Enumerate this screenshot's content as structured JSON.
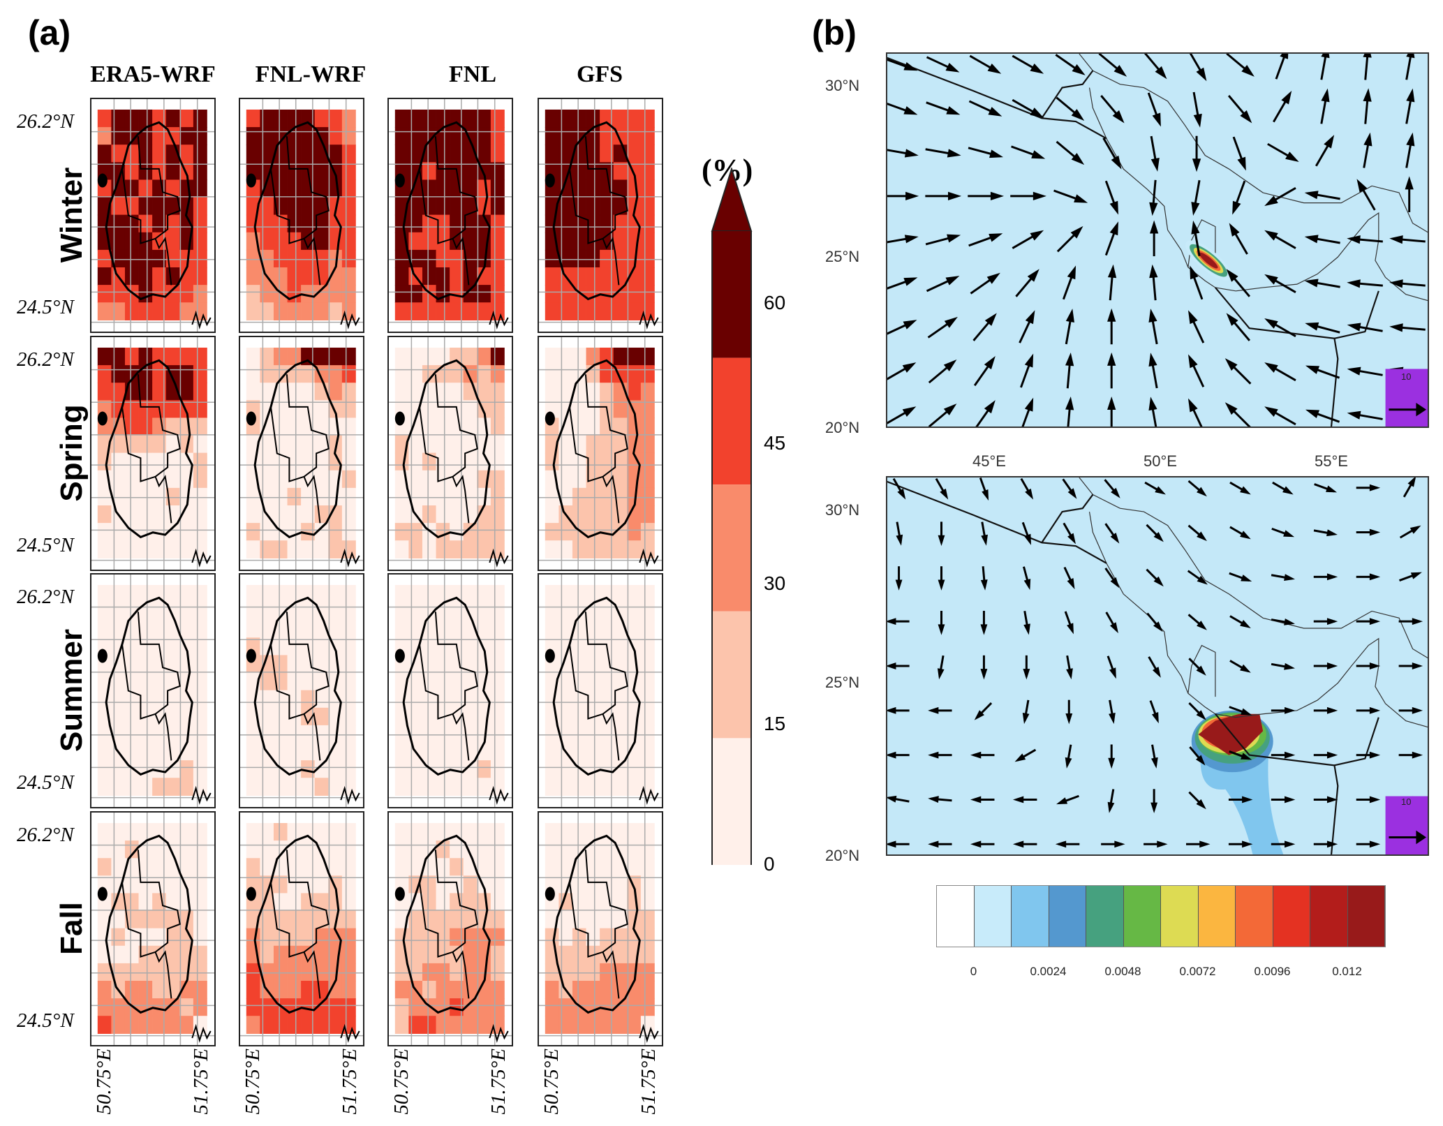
{
  "panel_a": {
    "label": "(a)",
    "columns": [
      "ERA5-WRF",
      "FNL-WRF",
      "FNL",
      "GFS"
    ],
    "rows": [
      "Winter",
      "Spring",
      "Summer",
      "Fall"
    ],
    "lat_labels": [
      "26.2°N",
      "24.5°N"
    ],
    "lon_labels": [
      "50.75°E",
      "51.75°E"
    ],
    "colorbar": {
      "unit": "(%)",
      "ticks": [
        "60",
        "45",
        "30",
        "15",
        "0"
      ],
      "colors": [
        "#fff0ea",
        "#fcc4ac",
        "#f98b6b",
        "#f2422d",
        "#690000"
      ]
    }
  },
  "panel_b": {
    "label": "(b)",
    "lat_labels": [
      "30°N",
      "25°N",
      "20°N"
    ],
    "lon_labels": [
      "45°E",
      "50°E",
      "55°E"
    ],
    "ref_vector": "10",
    "colorbar": {
      "ticks": [
        "0",
        "0.0024",
        "0.0048",
        "0.0072",
        "0.0096",
        "0.012"
      ],
      "colors": [
        "#ffffff",
        "#c8ebfa",
        "#80c6ee",
        "#5498cf",
        "#46a17f",
        "#66b845",
        "#dddb53",
        "#fbb640",
        "#f36937",
        "#e43222",
        "#b31d1b",
        "#981a1a"
      ]
    },
    "background": "#c4e8f8"
  },
  "chart_data": [
    {
      "type": "heatmap",
      "title": "(a)",
      "unit": "%",
      "levels": [
        0,
        15,
        30,
        45,
        60
      ],
      "class_note": "digits are colour classes 0-4 of the colorbar",
      "panels": {
        "Winter": {
          "ERA5-WRF": [
            "34443434",
            "24443344",
            "43343434",
            "44343434",
            "34434344",
            "43344443",
            "44434343",
            "44443343",
            "34444333",
            "43443433",
            "33343332",
            "22333322"
          ],
          "FNL-WRF": [
            "34444332",
            "44444432",
            "44444443",
            "44444443",
            "34444443",
            "33444433",
            "33344433",
            "23334433",
            "22333323",
            "22233322",
            "12232222",
            "11222212"
          ],
          "FNL": [
            "44444443",
            "44444443",
            "44444443",
            "44344444",
            "44444434",
            "44444434",
            "44334443",
            "43334443",
            "44433443",
            "43443433",
            "44343443",
            "33333333"
          ],
          "GFS": [
            "44443333",
            "44443333",
            "44443433",
            "44444333",
            "44444433",
            "44444433",
            "44444333",
            "44444333",
            "44443333",
            "33333333",
            "33333333",
            "33333333"
          ]
        },
        "Spring": {
          "ERA5-WRF": [
            "44343333",
            "34443443",
            "33443443",
            "23333333",
            "22332111",
            "11111010",
            "10000001",
            "00000001",
            "00000100",
            "10000000",
            "00000000",
            "00000000"
          ],
          "FNL-WRF": [
            "01224444",
            "01111223",
            "00000121",
            "10000011",
            "10000000",
            "00000010",
            "00000010",
            "00000001",
            "00010000",
            "00000110",
            "10001010",
            "01100011"
          ],
          "FNL": [
            "00001124",
            "00111212",
            "00000111",
            "00000011",
            "00000001",
            "10000000",
            "10100000",
            "00000011",
            "00000001",
            "00100011",
            "11010111",
            "01011111"
          ],
          "GFS": [
            "00023444",
            "00013333",
            "00001232",
            "00001222",
            "10001122",
            "10011122",
            "10011122",
            "00011122",
            "00111122",
            "01111122",
            "11111121",
            "00111111"
          ]
        },
        "Summer": {
          "ERA5-WRF": [
            "00000000",
            "00000000",
            "00000000",
            "00000000",
            "00000000",
            "00000000",
            "00000000",
            "00000000",
            "00000000",
            "00000000",
            "00000010",
            "00001110"
          ],
          "FNL-WRF": [
            "00000000",
            "00000000",
            "00000000",
            "10000000",
            "11100000",
            "01100000",
            "00001000",
            "00001100",
            "00000000",
            "00000000",
            "00001000",
            "00000100"
          ],
          "FNL": [
            "00000000",
            "00000000",
            "00000000",
            "00000000",
            "00000000",
            "00000000",
            "00000000",
            "00000000",
            "00000000",
            "00000000",
            "00000010",
            "00000000"
          ],
          "GFS": [
            "00000000",
            "00000000",
            "00000000",
            "00000000",
            "00000000",
            "00000000",
            "00000000",
            "00000000",
            "00000000",
            "00000000",
            "00000000",
            "00000000"
          ]
        },
        "Fall": {
          "ERA5-WRF": [
            "00000000",
            "00100000",
            "10000000",
            "00000000",
            "01101000",
            "00111110",
            "01000110",
            "00011111",
            "11111111",
            "21221122",
            "22222212",
            "32222220"
          ],
          "FNL-WRF": [
            "00100000",
            "00000000",
            "10000000",
            "11100010",
            "11001110",
            "11111111",
            "21111222",
            "21222222",
            "32222222",
            "32223322",
            "33333333",
            "23333333"
          ],
          "FNL": [
            "00000000",
            "00010000",
            "00001000",
            "01100100",
            "00101110",
            "01111111",
            "11112222",
            "11111221",
            "11221221",
            "22122222",
            "12223222",
            "13322222"
          ],
          "GFS": [
            "00000000",
            "00000000",
            "00000000",
            "00000010",
            "01000010",
            "00000011",
            "10101111",
            "11111111",
            "11112222",
            "21222222",
            "22222222",
            "22222220"
          ]
        }
      }
    },
    {
      "type": "vector-field",
      "title": "(b) top",
      "lon_range": [
        42,
        57.8
      ],
      "lat_range": [
        20,
        31
      ],
      "angles_deg": [
        [
          -20,
          -25,
          -30,
          -30,
          -35,
          -40,
          -50,
          -60,
          -40,
          70,
          80,
          85,
          80
        ],
        [
          -20,
          -20,
          -25,
          -30,
          -40,
          -50,
          -70,
          -80,
          -50,
          60,
          80,
          85,
          80
        ],
        [
          -10,
          -10,
          -15,
          -20,
          -40,
          -60,
          -80,
          -90,
          -70,
          -30,
          60,
          80,
          80
        ],
        [
          0,
          0,
          0,
          0,
          -20,
          -70,
          -95,
          -100,
          -110,
          -150,
          170,
          120,
          90
        ],
        [
          10,
          15,
          20,
          30,
          45,
          70,
          90,
          100,
          120,
          150,
          170,
          175,
          175
        ],
        [
          20,
          25,
          35,
          50,
          70,
          85,
          95,
          110,
          130,
          150,
          170,
          175,
          175
        ],
        [
          25,
          35,
          50,
          65,
          80,
          90,
          100,
          115,
          130,
          150,
          165,
          170,
          175
        ],
        [
          30,
          40,
          55,
          70,
          85,
          90,
          100,
          115,
          135,
          150,
          160,
          170,
          170
        ],
        [
          30,
          40,
          55,
          70,
          85,
          90,
          100,
          115,
          135,
          150,
          160,
          170,
          170
        ]
      ],
      "magnitude": 1.0
    },
    {
      "type": "vector-field",
      "title": "(b) bottom",
      "lon_range": [
        42,
        57.8
      ],
      "lat_range": [
        20,
        31
      ],
      "angles_deg": [
        [
          -60,
          -60,
          -70,
          -60,
          -55,
          -50,
          -30,
          -40,
          -30,
          -30,
          -20,
          0,
          60
        ],
        [
          -80,
          -90,
          -80,
          -70,
          -60,
          -55,
          -45,
          -40,
          -30,
          -20,
          -10,
          0,
          30
        ],
        [
          -90,
          -90,
          -85,
          -75,
          -65,
          -55,
          -45,
          -35,
          -20,
          -10,
          0,
          0,
          20
        ],
        [
          180,
          -90,
          -90,
          -80,
          -70,
          -60,
          -50,
          -40,
          -30,
          -10,
          0,
          0,
          0
        ],
        [
          180,
          -100,
          -90,
          -90,
          -80,
          -70,
          -60,
          -45,
          -30,
          -10,
          0,
          0,
          0
        ],
        [
          180,
          180,
          -135,
          -100,
          -90,
          -80,
          -70,
          -45,
          -20,
          0,
          0,
          0,
          0
        ],
        [
          180,
          180,
          180,
          -150,
          -100,
          -90,
          -80,
          -50,
          -20,
          0,
          0,
          0,
          0
        ],
        [
          170,
          175,
          180,
          180,
          -160,
          -100,
          -90,
          -45,
          0,
          0,
          0,
          0,
          0
        ],
        [
          180,
          180,
          180,
          180,
          180,
          0,
          0,
          0,
          0,
          0,
          0,
          0,
          0
        ]
      ],
      "magnitude": 0.65
    }
  ]
}
